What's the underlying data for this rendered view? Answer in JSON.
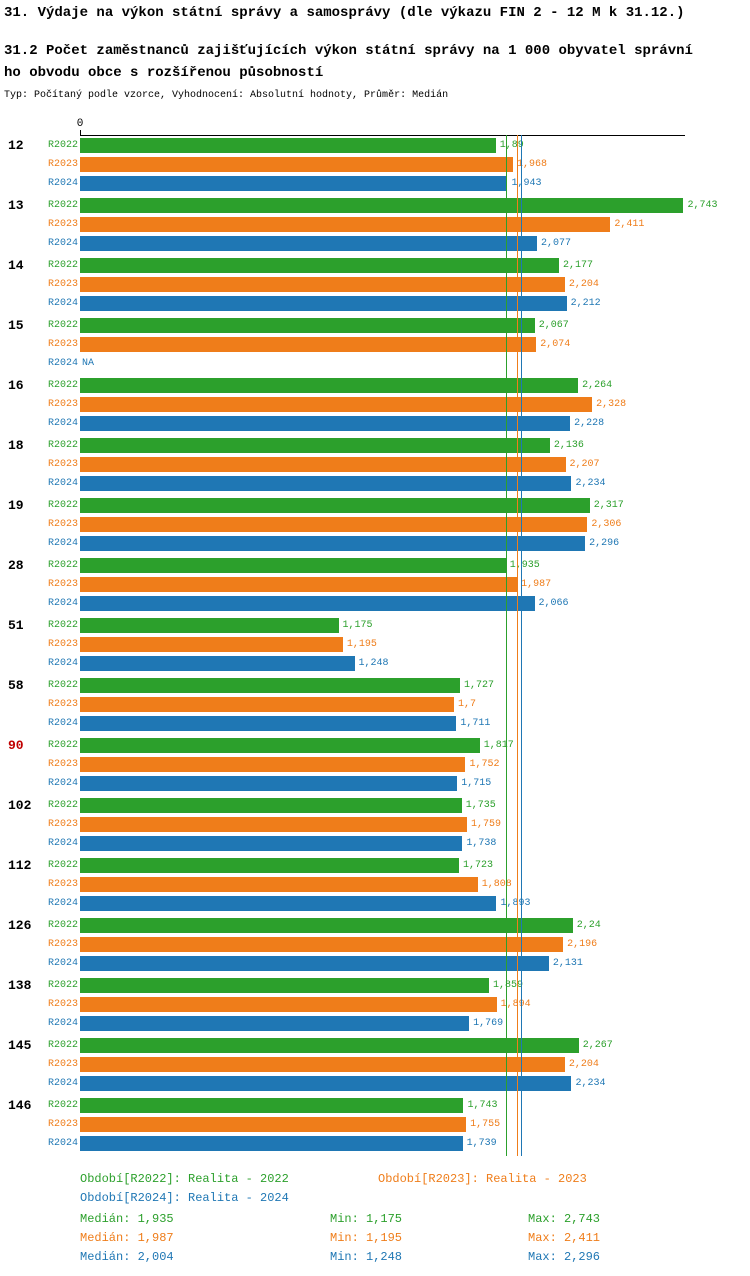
{
  "title": "31. Výdaje na výkon státní správy a samosprávy (dle výkazu FIN 2 - 12 M k 31.12.)",
  "subtitle": "31.2 Počet zaměstnanců zajišťujících výkon státní správy na 1 000 obyvatel správního obvodu obce s rozšířenou působností",
  "meta": "Typ: Počítaný podle vzorce, Vyhodnocení: Absolutní hodnoty, Průměr: Medián",
  "chart_data": {
    "type": "bar",
    "orientation": "horizontal",
    "x_axis": {
      "min": 0,
      "max": 2.75,
      "zero_label": "0",
      "grid": false
    },
    "categories": [
      "12",
      "13",
      "14",
      "15",
      "16",
      "18",
      "19",
      "28",
      "51",
      "58",
      "90",
      "102",
      "112",
      "126",
      "138",
      "145",
      "146"
    ],
    "highlighted_category": "90",
    "series": [
      {
        "name": "R2022",
        "color": "#2ca02c",
        "values": [
          1.89,
          2.743,
          2.177,
          2.067,
          2.264,
          2.136,
          2.317,
          1.935,
          1.175,
          1.727,
          1.817,
          1.735,
          1.723,
          2.24,
          1.859,
          2.267,
          1.743
        ],
        "labels": [
          "1,89",
          "2,743",
          "2,177",
          "2,067",
          "2,264",
          "2,136",
          "2,317",
          "1,935",
          "1,175",
          "1,727",
          "1,817",
          "1,735",
          "1,723",
          "2,24",
          "1,859",
          "2,267",
          "1,743"
        ]
      },
      {
        "name": "R2023",
        "color": "#ef7d1a",
        "values": [
          1.968,
          2.411,
          2.204,
          2.074,
          2.328,
          2.207,
          2.306,
          1.987,
          1.195,
          1.7,
          1.752,
          1.759,
          1.808,
          2.196,
          1.894,
          2.204,
          1.755
        ],
        "labels": [
          "1,968",
          "2,411",
          "2,204",
          "2,074",
          "2,328",
          "2,207",
          "2,306",
          "1,987",
          "1,195",
          "1,7",
          "1,752",
          "1,759",
          "1,808",
          "2,196",
          "1,894",
          "2,204",
          "1,755"
        ]
      },
      {
        "name": "R2024",
        "color": "#1f77b4",
        "values": [
          1.943,
          2.077,
          2.212,
          null,
          2.228,
          2.234,
          2.296,
          2.066,
          1.248,
          1.711,
          1.715,
          1.738,
          1.893,
          2.131,
          1.769,
          2.234,
          1.739
        ],
        "labels": [
          "1,943",
          "2,077",
          "2,212",
          "NA",
          "2,228",
          "2,234",
          "2,296",
          "2,066",
          "1,248",
          "1,711",
          "1,715",
          "1,738",
          "1,893",
          "2,131",
          "1,769",
          "2,234",
          "1,739"
        ]
      }
    ],
    "median_lines": [
      {
        "value": 1.935,
        "color": "#2ca02c"
      },
      {
        "value": 1.987,
        "color": "#ef7d1a"
      },
      {
        "value": 2.004,
        "color": "#1f77b4"
      }
    ]
  },
  "legend": [
    {
      "label": "Období[R2022]: Realita - 2022",
      "color": "#2ca02c"
    },
    {
      "label": "Období[R2023]: Realita - 2023",
      "color": "#ef7d1a"
    },
    {
      "label": "Období[R2024]: Realita - 2024",
      "color": "#1f77b4"
    }
  ],
  "stats": [
    {
      "median": "Medián: 1,935",
      "min": "Min: 1,175",
      "max": "Max: 2,743",
      "color": "#2ca02c"
    },
    {
      "median": "Medián: 1,987",
      "min": "Min: 1,195",
      "max": "Max: 2,411",
      "color": "#ef7d1a"
    },
    {
      "median": "Medián: 2,004",
      "min": "Min: 1,248",
      "max": "Max: 2,296",
      "color": "#1f77b4"
    }
  ],
  "colors": {
    "highlight_category": "#c00000",
    "axis": "#000000"
  }
}
